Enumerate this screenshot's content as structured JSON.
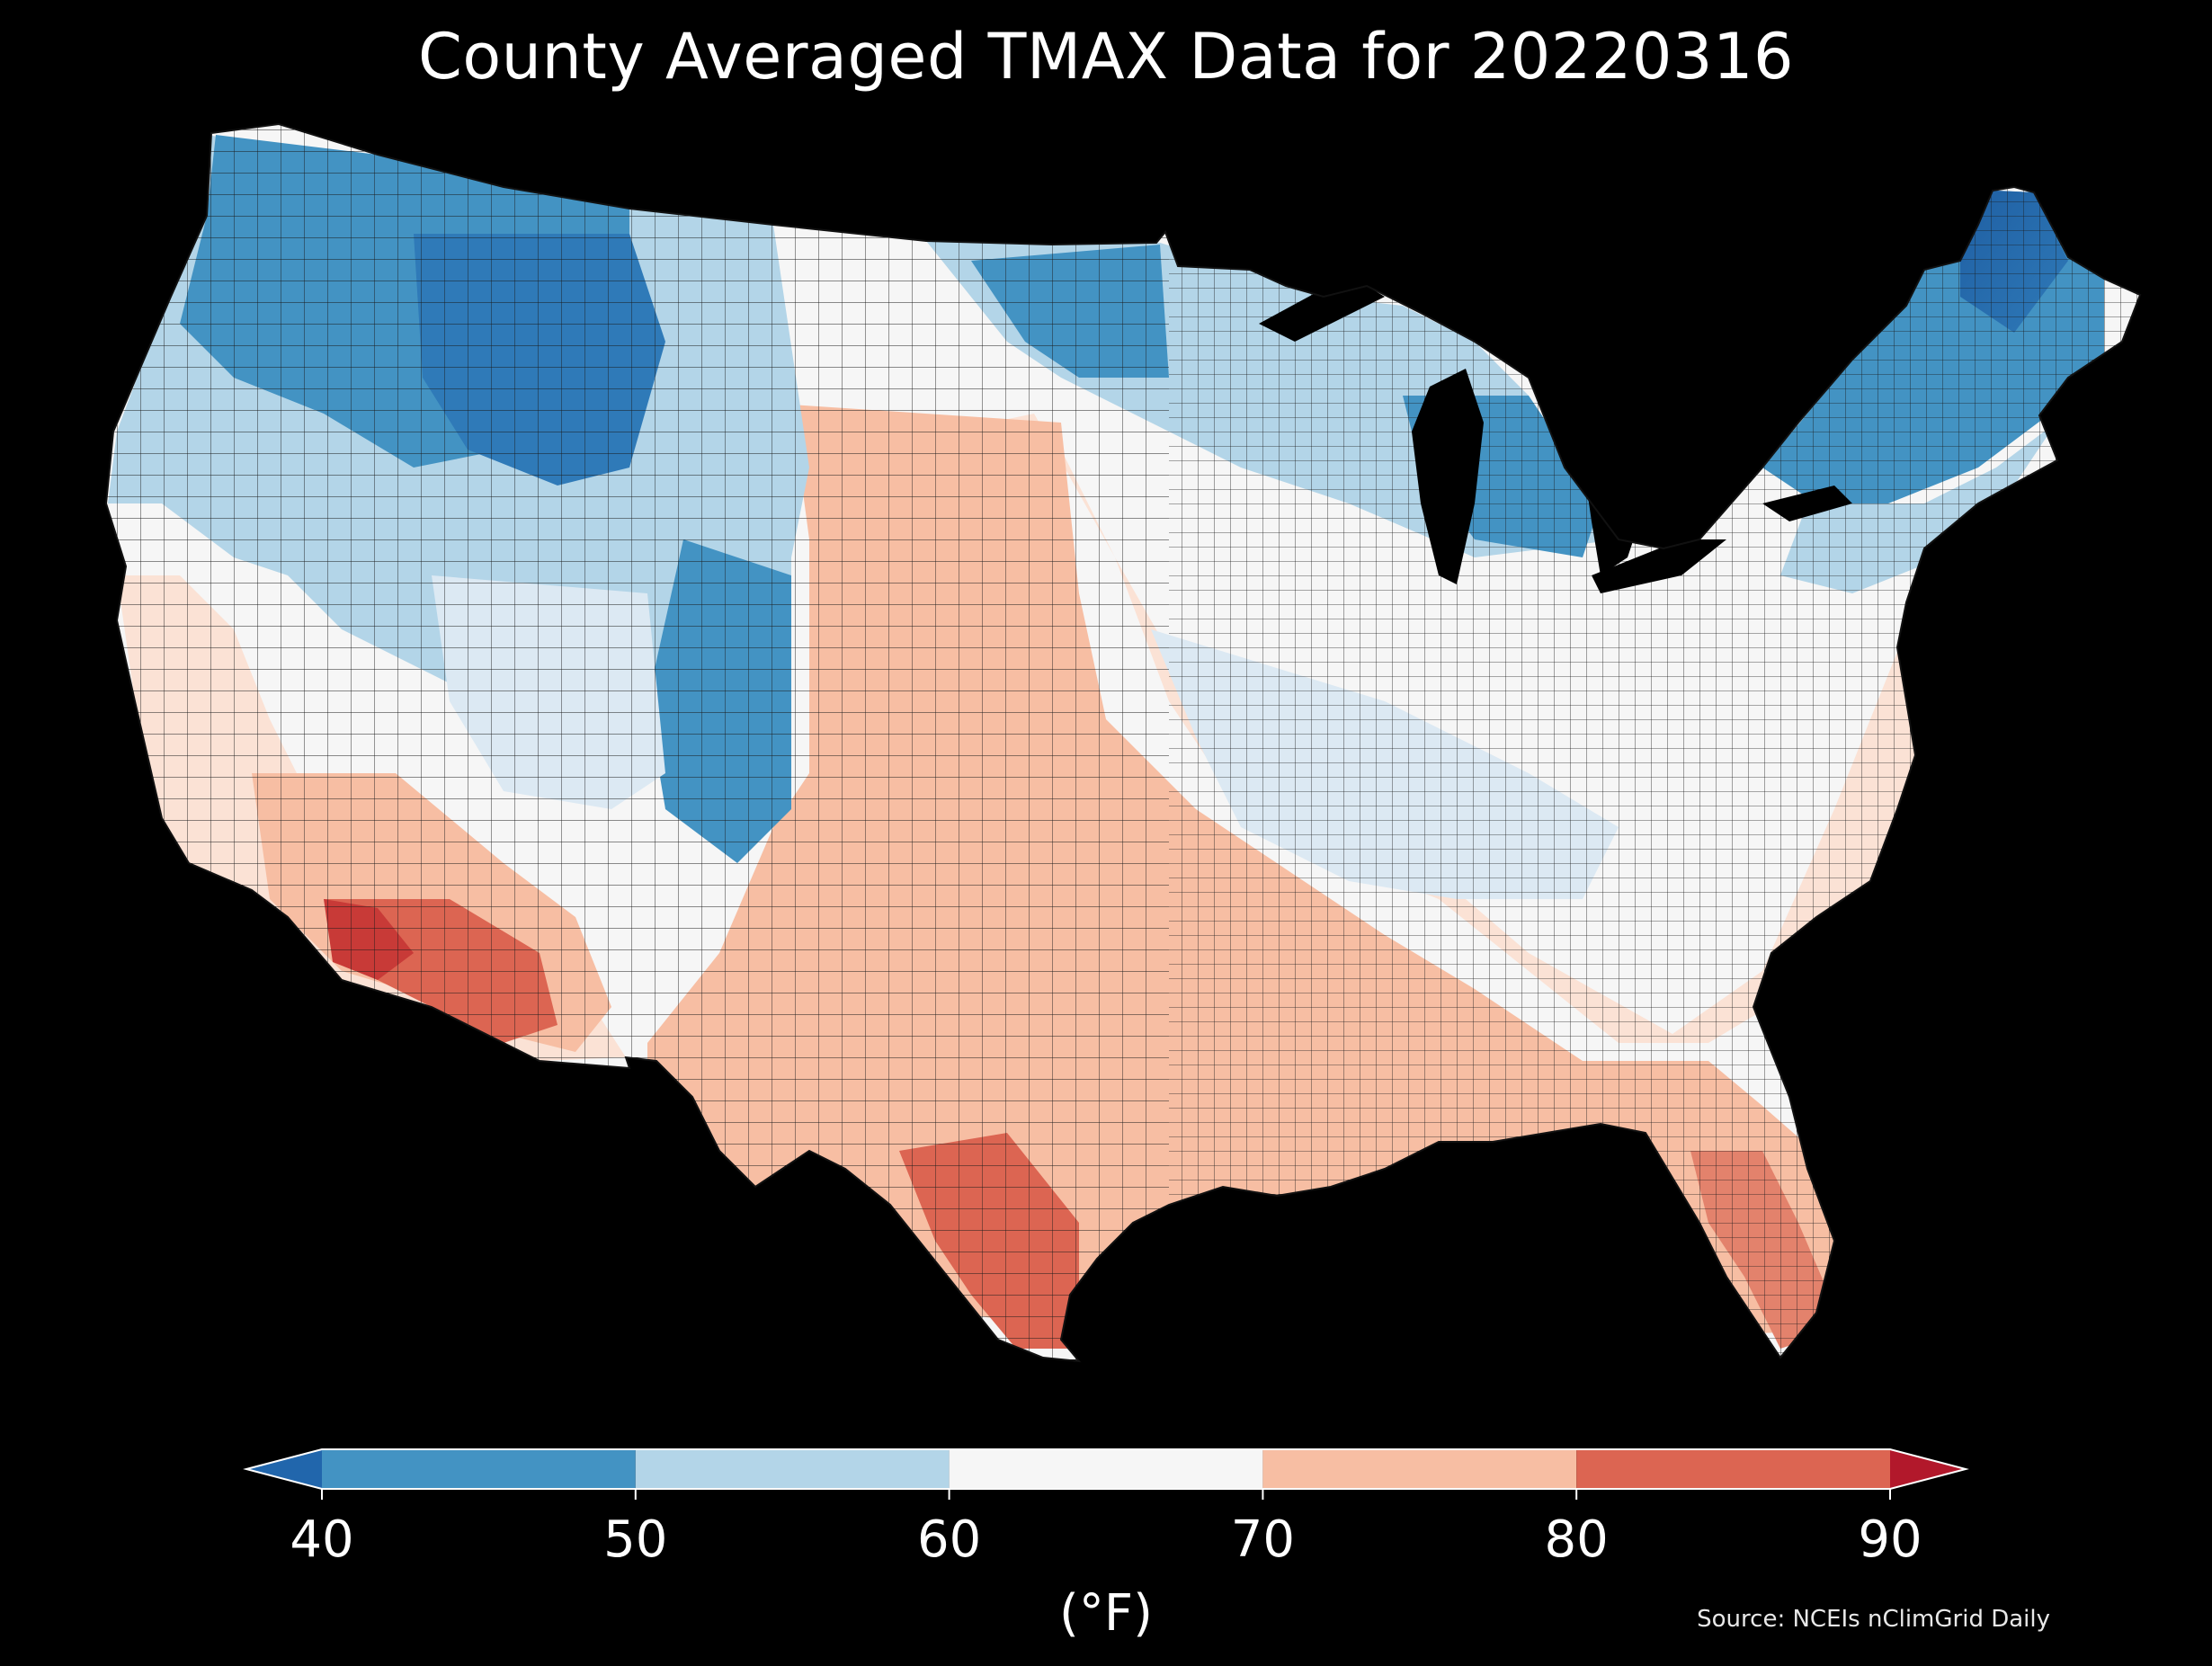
{
  "title": "County Averaged TMAX Data for 20220316",
  "colorbar": {
    "unit_label": "(°F)",
    "ticks": [
      "40",
      "50",
      "60",
      "70",
      "80",
      "90"
    ],
    "bins": [
      {
        "from": 40,
        "to": 50,
        "color": "#4393c3"
      },
      {
        "from": 50,
        "to": 60,
        "color": "#b3d5e8"
      },
      {
        "from": 60,
        "to": 70,
        "color": "#f6f6f6"
      },
      {
        "from": 70,
        "to": 80,
        "color": "#f7bea3"
      },
      {
        "from": 80,
        "to": 90,
        "color": "#dc6552"
      }
    ],
    "under_color": "#2166ac",
    "over_color": "#b2182b",
    "extend": "both"
  },
  "source": "Source: NCEIs nClimGrid Daily",
  "map_colors": {
    "background": "#000000",
    "county_borders": "#1a1a1a"
  }
}
